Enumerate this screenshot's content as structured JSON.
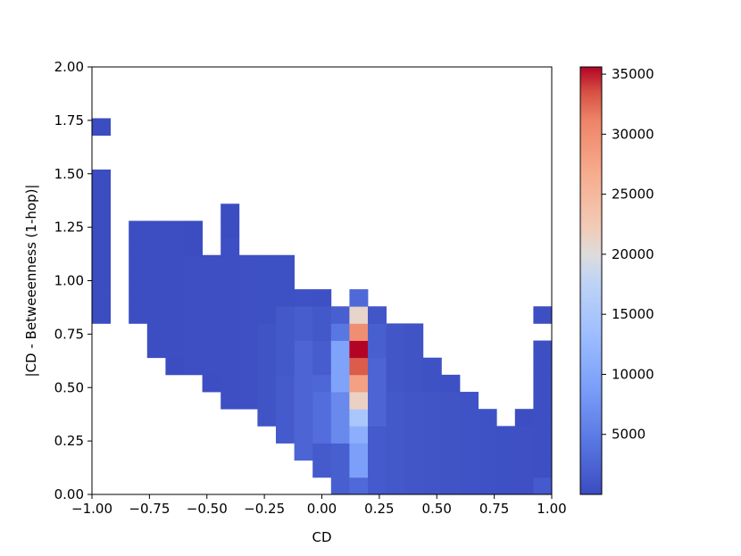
{
  "chart_data": {
    "type": "heatmap",
    "xlabel": "CD",
    "ylabel": "|CD - Betweeenness (1-hop)|",
    "xlim": [
      -1.0,
      1.0
    ],
    "ylim": [
      0.0,
      2.0
    ],
    "xticks": [
      "−1.00",
      "−0.75",
      "−0.50",
      "−0.25",
      "0.00",
      "0.25",
      "0.50",
      "0.75",
      "1.00"
    ],
    "yticks": [
      "0.00",
      "0.25",
      "0.50",
      "0.75",
      "1.00",
      "1.25",
      "1.50",
      "1.75",
      "2.00"
    ],
    "bins": {
      "nx": 25,
      "ny": 25
    },
    "colormap": "coolwarm",
    "color_range": [
      0,
      35600
    ],
    "colorbar_ticks": [
      "5000",
      "10000",
      "15000",
      "20000",
      "25000",
      "30000",
      "35000"
    ],
    "colors": {
      "low": "#3b4cc0",
      "mid": "#dddddd",
      "high": "#b40426"
    },
    "cells": [
      {
        "col": 0,
        "rows": [
          [
            10,
            18,
            100
          ]
        ]
      },
      {
        "col": 0,
        "rows": [
          [
            21,
            21,
            100
          ]
        ]
      },
      {
        "col": 2,
        "rows": [
          [
            10,
            15,
            180
          ]
        ]
      },
      {
        "col": 3,
        "rows": [
          [
            10,
            15,
            180
          ],
          [
            8,
            9,
            200
          ]
        ]
      },
      {
        "col": 4,
        "rows": [
          [
            8,
            15,
            250
          ],
          [
            7,
            7,
            150
          ]
        ]
      },
      {
        "col": 5,
        "rows": [
          [
            7,
            13,
            280
          ],
          [
            14,
            15,
            150
          ]
        ]
      },
      {
        "col": 6,
        "rows": [
          [
            7,
            13,
            300
          ],
          [
            6,
            6,
            200
          ]
        ]
      },
      {
        "col": 7,
        "rows": [
          [
            5,
            14,
            350
          ],
          [
            15,
            16,
            150
          ]
        ]
      },
      {
        "col": 8,
        "rows": [
          [
            5,
            13,
            400
          ]
        ]
      },
      {
        "col": 9,
        "rows": [
          [
            4,
            9,
            800
          ],
          [
            10,
            13,
            500
          ]
        ]
      },
      {
        "col": 10,
        "rows": [
          [
            3,
            6,
            1500
          ],
          [
            7,
            10,
            1200
          ],
          [
            11,
            13,
            500
          ]
        ]
      },
      {
        "col": 11,
        "rows": [
          [
            2,
            8,
            2500
          ],
          [
            9,
            10,
            1800
          ],
          [
            11,
            11,
            600
          ]
        ]
      },
      {
        "col": 12,
        "rows": [
          [
            1,
            2,
            1500
          ],
          [
            3,
            5,
            3500
          ],
          [
            6,
            6,
            2800
          ],
          [
            7,
            8,
            1800
          ],
          [
            9,
            10,
            1200
          ],
          [
            11,
            11,
            500
          ]
        ]
      },
      {
        "col": 13,
        "rows": [
          [
            0,
            2,
            2000
          ],
          [
            3,
            5,
            6500
          ],
          [
            6,
            8,
            9500
          ],
          [
            9,
            9,
            4500
          ],
          [
            10,
            10,
            2000
          ]
        ]
      },
      {
        "col": 14,
        "rows": [
          [
            0,
            0,
            3000
          ],
          [
            1,
            1,
            9000
          ],
          [
            2,
            2,
            9000
          ],
          [
            3,
            3,
            11000
          ],
          [
            4,
            4,
            15000
          ],
          [
            5,
            5,
            21500
          ],
          [
            6,
            6,
            28000
          ],
          [
            7,
            7,
            33000
          ],
          [
            8,
            8,
            35600
          ],
          [
            9,
            9,
            30000
          ],
          [
            10,
            10,
            21000
          ],
          [
            11,
            11,
            3000
          ]
        ]
      },
      {
        "col": 15,
        "rows": [
          [
            0,
            3,
            1500
          ],
          [
            4,
            7,
            2500
          ],
          [
            8,
            9,
            2000
          ],
          [
            10,
            10,
            1000
          ]
        ]
      },
      {
        "col": 16,
        "rows": [
          [
            0,
            5,
            1200
          ],
          [
            6,
            9,
            1000
          ]
        ]
      },
      {
        "col": 17,
        "rows": [
          [
            0,
            5,
            1000
          ],
          [
            6,
            9,
            800
          ]
        ]
      },
      {
        "col": 18,
        "rows": [
          [
            0,
            5,
            900
          ],
          [
            6,
            7,
            600
          ]
        ]
      },
      {
        "col": 19,
        "rows": [
          [
            0,
            5,
            800
          ],
          [
            6,
            6,
            500
          ]
        ]
      },
      {
        "col": 20,
        "rows": [
          [
            0,
            5,
            700
          ]
        ]
      },
      {
        "col": 21,
        "rows": [
          [
            0,
            4,
            600
          ]
        ]
      },
      {
        "col": 22,
        "rows": [
          [
            0,
            3,
            500
          ]
        ]
      },
      {
        "col": 23,
        "rows": [
          [
            0,
            3,
            400
          ],
          [
            4,
            4,
            200
          ]
        ]
      },
      {
        "col": 24,
        "rows": [
          [
            0,
            0,
            1500
          ],
          [
            1,
            8,
            350
          ],
          [
            10,
            10,
            300
          ]
        ]
      }
    ]
  }
}
